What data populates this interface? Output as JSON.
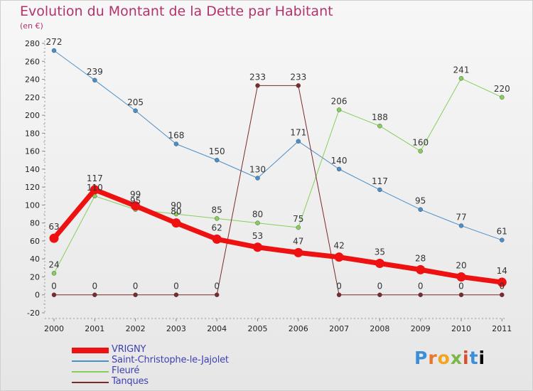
{
  "chart": {
    "title": "Evolution du Montant de la Dette par Habitant",
    "unit": "(en €)",
    "logo": "Proxiti"
  },
  "chart_data": {
    "type": "line",
    "title": "Evolution du Montant de la Dette par Habitant",
    "subtitle": "(en €)",
    "x": [
      "2000",
      "2001",
      "2002",
      "2003",
      "2004",
      "2005",
      "2006",
      "2007",
      "2008",
      "2009",
      "2010",
      "2011"
    ],
    "ylim": [
      -20,
      280
    ],
    "yticks": [
      -20,
      0,
      20,
      40,
      60,
      80,
      100,
      120,
      140,
      160,
      180,
      200,
      220,
      240,
      260,
      280
    ],
    "grid": false,
    "legend_position": "bottom-left",
    "series": [
      {
        "name": "Saint-Christophe-le-Jajolet",
        "color": "#4a8fc9",
        "values": [
          272,
          239,
          205,
          168,
          150,
          130,
          171,
          140,
          117,
          95,
          77,
          61
        ]
      },
      {
        "name": "Fleuré",
        "color": "#86cf5a",
        "values": [
          24,
          110,
          95,
          90,
          85,
          80,
          75,
          206,
          188,
          160,
          241,
          220
        ]
      },
      {
        "name": "Tanques",
        "color": "#7a2b2b",
        "values": [
          0,
          0,
          0,
          0,
          0,
          233,
          233,
          0,
          0,
          0,
          0,
          0
        ]
      },
      {
        "name": "VRIGNY",
        "color": "#ee1111",
        "values": [
          63,
          117,
          99,
          80,
          62,
          53,
          47,
          42,
          35,
          28,
          20,
          14
        ]
      }
    ],
    "legend_order": [
      "VRIGNY",
      "Saint-Christophe-le-Jajolet",
      "Fleuré",
      "Tanques"
    ]
  }
}
